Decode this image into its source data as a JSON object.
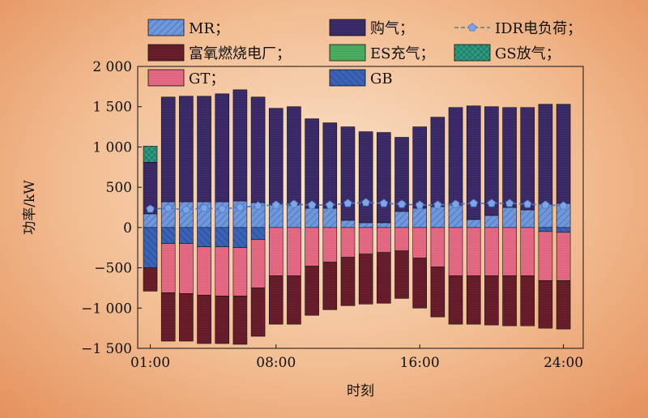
{
  "chart_data": {
    "type": "bar",
    "stacked": true,
    "xlabel": "时刻",
    "ylabel": "功率/kW",
    "ylim": [
      -1500,
      2000
    ],
    "yticks": [
      -1500,
      -1000,
      -500,
      0,
      500,
      1000,
      1500,
      2000
    ],
    "ytick_labels": [
      "−1 500",
      "−1 000",
      "−500",
      "0",
      "500",
      "1 000",
      "1 500",
      "2 000"
    ],
    "x": [
      1,
      2,
      3,
      4,
      5,
      6,
      7,
      8,
      9,
      10,
      11,
      12,
      13,
      14,
      15,
      16,
      17,
      18,
      19,
      20,
      21,
      22,
      23,
      24
    ],
    "xticks": [
      1,
      8,
      16,
      24
    ],
    "xtick_labels": [
      "01:00",
      "08:00",
      "16:00",
      "24:00"
    ],
    "legend_position": "top",
    "colors": {
      "MR": "#6f97dc",
      "购气": "#3d2c6a",
      "IDR电负荷": "#6f97dc",
      "富氧燃烧电厂": "#6a1e2c",
      "ES充气": "#4cae60",
      "GS放气": "#2f9a82",
      "GT": "#e46a84",
      "GB": "#3a62b5"
    },
    "series": [
      {
        "name": "MR；",
        "key": "MR",
        "values": [
          170,
          320,
          320,
          320,
          320,
          330,
          310,
          280,
          280,
          240,
          240,
          90,
          60,
          60,
          200,
          240,
          260,
          280,
          100,
          150,
          250,
          220,
          290,
          300
        ]
      },
      {
        "name": "购气；",
        "key": "购气",
        "values": [
          640,
          1300,
          1310,
          1310,
          1340,
          1380,
          1310,
          1200,
          1220,
          1110,
          1060,
          1160,
          1130,
          1120,
          920,
          1010,
          1110,
          1210,
          1410,
          1350,
          1240,
          1270,
          1240,
          1230
        ]
      },
      {
        "name": "ES充气；",
        "key": "ES充气",
        "values": [
          0,
          0,
          0,
          0,
          0,
          0,
          0,
          0,
          0,
          0,
          0,
          0,
          0,
          0,
          0,
          0,
          0,
          0,
          0,
          0,
          0,
          0,
          0,
          0
        ]
      },
      {
        "name": "GS放气；",
        "key": "GS放气",
        "values": [
          200,
          0,
          0,
          0,
          0,
          0,
          0,
          0,
          0,
          0,
          0,
          0,
          0,
          0,
          0,
          0,
          0,
          0,
          0,
          0,
          0,
          0,
          0,
          0
        ]
      },
      {
        "name": "GB",
        "key": "GB",
        "values": [
          -500,
          -200,
          -200,
          -240,
          -240,
          -250,
          -150,
          0,
          0,
          0,
          0,
          0,
          0,
          0,
          0,
          0,
          0,
          0,
          0,
          0,
          0,
          0,
          -50,
          -60
        ]
      },
      {
        "name": "GT；",
        "key": "GT",
        "values": [
          0,
          -610,
          -620,
          -600,
          -610,
          -600,
          -600,
          -600,
          -600,
          -480,
          -430,
          -370,
          -330,
          -310,
          -290,
          -380,
          -490,
          -600,
          -600,
          -600,
          -600,
          -600,
          -610,
          -600
        ]
      },
      {
        "name": "富氧燃烧电厂；",
        "key": "富氧燃烧电厂",
        "values": [
          -290,
          -600,
          -590,
          -600,
          -590,
          -600,
          -600,
          -600,
          -600,
          -610,
          -590,
          -600,
          -620,
          -630,
          -590,
          -620,
          -620,
          -600,
          -600,
          -610,
          -620,
          -620,
          -590,
          -600
        ]
      }
    ],
    "line": {
      "name": "IDR电负荷；",
      "key": "IDR电负荷",
      "values": [
        230,
        240,
        220,
        240,
        230,
        250,
        270,
        280,
        290,
        280,
        280,
        300,
        310,
        300,
        290,
        280,
        280,
        290,
        300,
        300,
        300,
        290,
        280,
        270
      ]
    }
  }
}
